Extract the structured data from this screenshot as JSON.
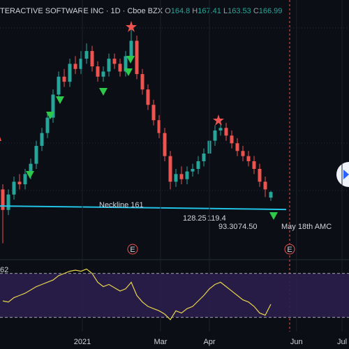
{
  "chart_data": {
    "type": "candlestick",
    "title": "TERACTIVE SOFTWARE INC · 1D · Cboe BZX",
    "ohlc_labels": [
      "O",
      "H",
      "L",
      "C"
    ],
    "up_color": "#26a69a",
    "down_color": "#ef5350",
    "open": [
      168,
      160,
      166,
      171,
      170,
      174,
      178,
      185,
      190,
      196,
      205,
      212,
      210,
      217,
      215,
      219,
      222,
      216,
      212,
      214,
      219,
      217,
      214,
      220,
      226,
      213,
      207,
      201,
      195,
      190,
      181,
      171,
      174,
      172,
      175,
      176,
      179,
      182,
      187,
      191,
      192,
      189,
      186,
      183,
      181,
      179,
      176,
      171,
      164.8
    ],
    "high": [
      170,
      168,
      173,
      174,
      176,
      180,
      187,
      192,
      198,
      207,
      214,
      215,
      219,
      220,
      222,
      225,
      224,
      218,
      216,
      221,
      221,
      219,
      222,
      232,
      228,
      215,
      209,
      203,
      197,
      192,
      183,
      176,
      177,
      177,
      178,
      181,
      184,
      189,
      193,
      195,
      194,
      191,
      188,
      185,
      183,
      181,
      178,
      173,
      167.41
    ],
    "low": [
      147,
      158,
      164,
      168,
      168,
      172,
      176,
      183,
      188,
      194,
      203,
      208,
      208,
      213,
      213,
      217,
      214,
      210,
      210,
      212,
      215,
      212,
      212,
      218,
      211,
      205,
      199,
      193,
      188,
      179,
      168,
      169,
      170,
      170,
      173,
      174,
      177,
      180,
      185,
      189,
      187,
      184,
      181,
      179,
      177,
      174,
      169,
      165,
      163.53
    ],
    "close": [
      160,
      166,
      171,
      170,
      174,
      178,
      185,
      190,
      196,
      205,
      212,
      210,
      217,
      215,
      219,
      222,
      216,
      212,
      214,
      219,
      217,
      214,
      220,
      226,
      213,
      207,
      201,
      195,
      190,
      181,
      171,
      174,
      172,
      175,
      176,
      179,
      182,
      187,
      191,
      192,
      189,
      186,
      183,
      181,
      179,
      176,
      171,
      168,
      166.99
    ],
    "ylim": [
      142.5,
      240
    ],
    "xticks": [
      {
        "value": 14.25,
        "label": "2021"
      },
      {
        "value": 28.25,
        "label": "Mar"
      },
      {
        "value": 37,
        "label": "Apr"
      },
      {
        "value": 52.6,
        "label": "Jun"
      },
      {
        "value": 60.75,
        "label": "Jul"
      }
    ],
    "neckline": {
      "value": 161,
      "label": "Neckline 161"
    },
    "annotations": [
      "128.25",
      "119.4",
      "93.30",
      "74.50",
      "May 18th AMC"
    ],
    "earnings": [
      "E",
      "E"
    ],
    "rsi": {
      "label": "62",
      "color": "#e8d44d",
      "ylim": [
        20,
        80
      ],
      "levels": [
        70,
        30
      ],
      "values": [
        45,
        44,
        48,
        50,
        52,
        55,
        58,
        60,
        62,
        64,
        68,
        70,
        72,
        73,
        72,
        74,
        70,
        62,
        58,
        60,
        57,
        54,
        56,
        62,
        50,
        44,
        40,
        38,
        36,
        33,
        28,
        36,
        34,
        38,
        40,
        45,
        50,
        56,
        60,
        62,
        58,
        54,
        50,
        46,
        44,
        40,
        34,
        32,
        42
      ]
    }
  }
}
